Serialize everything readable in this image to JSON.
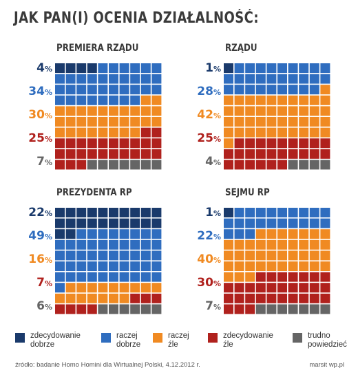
{
  "title": "JAK PAN(I) OCENIA DZIAŁALNOŚĆ:",
  "colors": {
    "zdecydowanie_dobrze": "#1a3a6b",
    "raczej_dobrze": "#2f6dbf",
    "raczej_zle": "#f08a22",
    "zdecydowanie_zle": "#b0211d",
    "trudno": "#656565"
  },
  "legend": [
    {
      "key": "zdecydowanie_dobrze",
      "label": "zdecydowanie dobrze"
    },
    {
      "key": "raczej_dobrze",
      "label": "raczej dobrze"
    },
    {
      "key": "raczej_zle",
      "label": "raczej źle"
    },
    {
      "key": "zdecydowanie_zle",
      "label": "zdecydowanie źle"
    },
    {
      "key": "trudno",
      "label": "trudno powiedzieć"
    }
  ],
  "percent_sign": "%",
  "chart_data": [
    {
      "type": "waffle",
      "title": "PREMIERA RZĄDU",
      "categories": [
        "zdecydowanie dobrze",
        "raczej dobrze",
        "raczej źle",
        "zdecydowanie źle",
        "trudno powiedzieć"
      ],
      "values": [
        4,
        34,
        30,
        25,
        7
      ]
    },
    {
      "type": "waffle",
      "title": "RZĄDU",
      "categories": [
        "zdecydowanie dobrze",
        "raczej dobrze",
        "raczej źle",
        "zdecydowanie źle",
        "trudno powiedzieć"
      ],
      "values": [
        1,
        28,
        42,
        25,
        4
      ]
    },
    {
      "type": "waffle",
      "title": "PREZYDENTA RP",
      "categories": [
        "zdecydowanie dobrze",
        "raczej dobrze",
        "raczej źle",
        "zdecydowanie źle",
        "trudno powiedzieć"
      ],
      "values": [
        22,
        49,
        16,
        7,
        6
      ]
    },
    {
      "type": "waffle",
      "title": "SEJMU RP",
      "categories": [
        "zdecydowanie dobrze",
        "raczej dobrze",
        "raczej źle",
        "zdecydowanie źle",
        "trudno powiedzieć"
      ],
      "values": [
        1,
        22,
        40,
        30,
        7
      ]
    }
  ],
  "footer": "źródło: badanie Homo Homini dla Wirtualnej Polski, 4.12.2012 r.",
  "credit": "marsit wp.pl"
}
